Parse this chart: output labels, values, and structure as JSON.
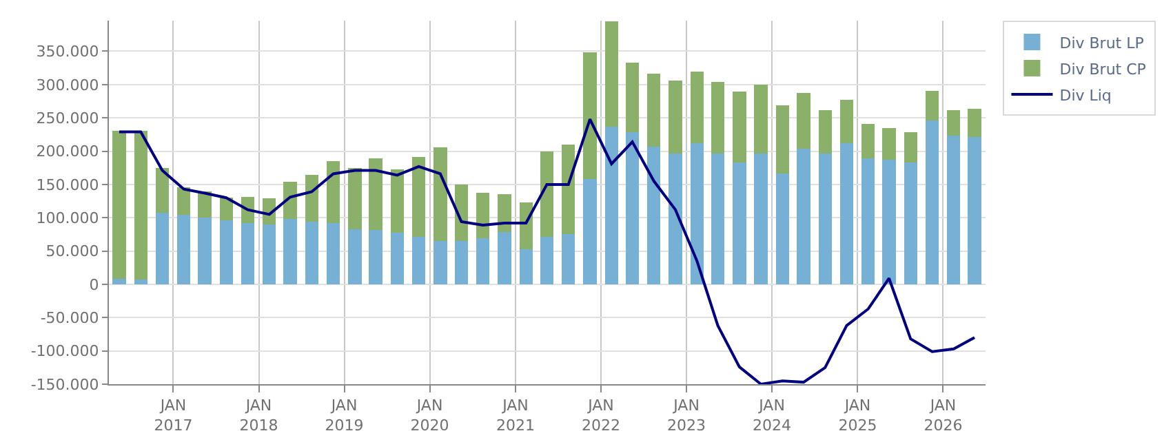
{
  "chart_data": {
    "type": "bar",
    "stacked": true,
    "x": [
      "2016-05-15",
      "2016-08-15",
      "2016-11-15",
      "2017-02-15",
      "2017-05-15",
      "2017-08-15",
      "2017-11-15",
      "2018-02-15",
      "2018-05-15",
      "2018-08-15",
      "2018-11-15",
      "2019-02-15",
      "2019-05-15",
      "2019-08-15",
      "2019-11-15",
      "2020-02-15",
      "2020-05-15",
      "2020-08-15",
      "2020-11-15",
      "2021-02-15",
      "2021-05-15",
      "2021-08-15",
      "2021-11-15",
      "2022-02-15",
      "2022-05-15",
      "2022-08-15",
      "2022-11-15",
      "2023-02-15",
      "2023-05-15",
      "2023-08-15",
      "2023-11-15",
      "2024-02-15",
      "2024-05-15",
      "2024-08-15",
      "2024-11-15",
      "2025-02-15",
      "2025-05-15",
      "2025-08-15",
      "2025-11-15",
      "2026-02-15",
      "2026-05-15"
    ],
    "series": [
      {
        "name": "Div Brut LP",
        "color": "#76b0d4",
        "values": [
          8000,
          7000,
          108000,
          104000,
          100000,
          96000,
          92000,
          90000,
          98000,
          94000,
          92000,
          83000,
          82000,
          78000,
          71000,
          65000,
          65000,
          69000,
          79000,
          53000,
          71000,
          75000,
          158000,
          237000,
          228000,
          207000,
          196000,
          212000,
          196000,
          183000,
          196000,
          166000,
          204000,
          196000,
          212000,
          189000,
          187000,
          183000,
          246000,
          223000,
          221000
        ]
      },
      {
        "name": "Div Brut CP",
        "color": "#8bb06a",
        "values": [
          223000,
          224000,
          67000,
          42000,
          40000,
          34000,
          39000,
          39000,
          56000,
          70000,
          93000,
          92000,
          107000,
          95000,
          120000,
          141000,
          85000,
          68000,
          56000,
          70000,
          129000,
          135000,
          190000,
          158000,
          105000,
          109000,
          110000,
          107000,
          108000,
          106000,
          104000,
          103000,
          83000,
          66000,
          65000,
          52000,
          48000,
          46000,
          45000,
          39000,
          43000
        ]
      },
      {
        "name": "Div Liq",
        "type": "line",
        "color": "#000080",
        "line_style": "solid",
        "values": [
          229000,
          229000,
          171000,
          143000,
          137000,
          130000,
          112000,
          105000,
          131000,
          139000,
          166000,
          171000,
          171000,
          164000,
          177000,
          166000,
          94000,
          89000,
          92000,
          92000,
          150000,
          150000,
          248000,
          181000,
          214000,
          155000,
          112000,
          35000,
          -62000,
          -124000,
          -150000,
          -145000,
          -147000,
          -125000,
          -62000,
          -37000,
          9000,
          -82000,
          -101000,
          -97000,
          -80000
        ]
      }
    ],
    "xlim": [
      "2016-04-01",
      "2026-07-01"
    ],
    "xticks": [
      {
        "value": "2017-01-01",
        "label": "JAN\n2017"
      },
      {
        "value": "2018-01-01",
        "label": "JAN\n2018"
      },
      {
        "value": "2019-01-01",
        "label": "JAN\n2019"
      },
      {
        "value": "2020-01-01",
        "label": "JAN\n2020"
      },
      {
        "value": "2021-01-01",
        "label": "JAN\n2021"
      },
      {
        "value": "2022-01-01",
        "label": "JAN\n2022"
      },
      {
        "value": "2023-01-01",
        "label": "JAN\n2023"
      },
      {
        "value": "2024-01-01",
        "label": "JAN\n2024"
      },
      {
        "value": "2025-01-01",
        "label": "JAN\n2025"
      },
      {
        "value": "2026-01-01",
        "label": "JAN\n2026"
      }
    ],
    "ylim": [
      -150000,
      396000
    ],
    "yticks": [
      {
        "value": -150000,
        "label": "-150.000"
      },
      {
        "value": -100000,
        "label": "-100.000"
      },
      {
        "value": -50000,
        "label": "-50.000"
      },
      0,
      {
        "value": 50000,
        "label": "50.000"
      },
      {
        "value": 100000,
        "label": "100.000"
      },
      {
        "value": 150000,
        "label": "150.000"
      },
      {
        "value": 200000,
        "label": "200.000"
      },
      {
        "value": 250000,
        "label": "250.000"
      },
      {
        "value": 300000,
        "label": "300.000"
      },
      {
        "value": 350000,
        "label": "350.000"
      }
    ],
    "grid": true,
    "legend": "top right",
    "marker": "none"
  }
}
